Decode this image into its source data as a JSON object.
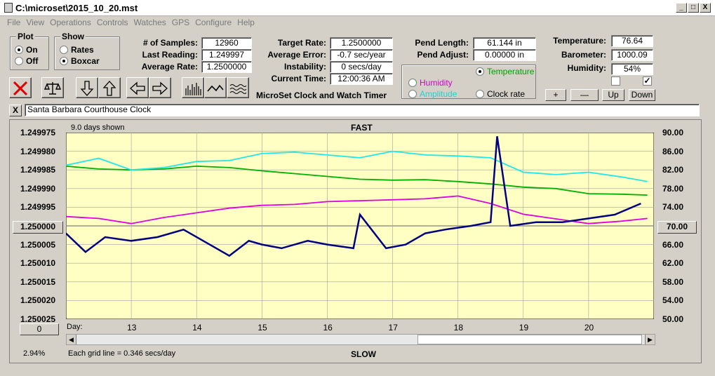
{
  "window": {
    "title": "C:\\microset\\2015_10_20.mst",
    "min": "_",
    "max": "□",
    "close": "X"
  },
  "menu": [
    "File",
    "View",
    "Operations",
    "Controls",
    "Watches",
    "GPS",
    "Configure",
    "Help"
  ],
  "plot_group": {
    "title": "Plot",
    "on": "On",
    "off": "Off",
    "selected": "On"
  },
  "show_group": {
    "title": "Show",
    "rates": "Rates",
    "boxcar": "Boxcar",
    "selected": "Boxcar"
  },
  "stats": {
    "samples_label": "# of Samples:",
    "samples": "12960",
    "last_label": "Last Reading:",
    "last": "1.249997",
    "avg_rate_label": "Average Rate:",
    "avg_rate": "1.2500000"
  },
  "rates": {
    "target_label": "Target Rate:",
    "target": "1.2500000",
    "avg_err_label": "Average Error:",
    "avg_err": "-0.7 sec/year",
    "instab_label": "Instability:",
    "instab": "0 secs/day",
    "time_label": "Current Time:",
    "time": "12:00:36 AM"
  },
  "app_name": "MicroSet Clock and Watch Timer",
  "pend": {
    "length_label": "Pend Length:",
    "length": "61.144 in",
    "adjust_label": "Pend Adjust:",
    "adjust": "0.00000 in"
  },
  "sensors": {
    "temp_label": "Temperature:",
    "temp": "76.64",
    "baro_label": "Barometer:",
    "baro": "1000.09",
    "hum_label": "Humidity:",
    "hum": "54%"
  },
  "right_axis_options": {
    "temperature": "Temperature",
    "humidity": "Humidity",
    "amplitude": "Amplitude",
    "clock_rate": "Clock rate",
    "selected": "Temperature"
  },
  "scale_buttons": {
    "plus": "+",
    "minus": "—",
    "up": "Up",
    "down": "Down"
  },
  "checkboxes": {
    "left": false,
    "right": true
  },
  "clock_name": "Santa Barbara Courthouse Clock",
  "clear_label": "X",
  "plot": {
    "days_shown": "9.0 days shown",
    "fast": "FAST",
    "slow": "SLOW",
    "center_left": "1.250000",
    "center_right": "70.00",
    "bottom_btn": "0",
    "percent": "2.94%",
    "grid_note": "Each grid line = 0.346 secs/day",
    "day_label": "Day:"
  },
  "colors": {
    "rate": "#000080",
    "temperature": "#00b000",
    "humidity": "#e000e0",
    "amplitude": "#20e8e8",
    "plot_bg": "#ffffc4"
  },
  "chart_data": {
    "type": "line",
    "x_label": "Day:",
    "x_ticks": [
      "13",
      "14",
      "15",
      "16",
      "17",
      "18",
      "19",
      "20"
    ],
    "x_range": [
      12.0,
      21.0
    ],
    "y_left_ticks": [
      "1.249975",
      "1.249980",
      "1.249985",
      "1.249990",
      "1.249995",
      "1.250000",
      "1.250005",
      "1.250010",
      "1.250015",
      "1.250020",
      "1.250025"
    ],
    "y_left_range": [
      1.249975,
      1.250025
    ],
    "y_left_inverted": true,
    "y_right_ticks": [
      "90.00",
      "86.00",
      "82.00",
      "78.00",
      "74.00",
      "70.00",
      "66.00",
      "62.00",
      "58.00",
      "54.00",
      "50.00"
    ],
    "y_right_range": [
      50,
      90
    ],
    "series": [
      {
        "name": "Temperature",
        "axis": "right",
        "color": "#00b000",
        "x": [
          12.0,
          12.5,
          13.0,
          13.5,
          14.0,
          14.5,
          15.0,
          15.5,
          16.0,
          16.5,
          17.0,
          17.5,
          18.0,
          18.5,
          19.0,
          19.5,
          20.0,
          20.5,
          20.9
        ],
        "y": [
          82.8,
          82.2,
          82.0,
          82.2,
          82.8,
          82.5,
          81.8,
          81.2,
          80.6,
          80.0,
          79.8,
          79.9,
          79.5,
          79.0,
          78.3,
          78.0,
          76.9,
          76.8,
          76.6
        ]
      },
      {
        "name": "Humidity",
        "axis": "right",
        "color": "#e000e0",
        "x": [
          12.0,
          12.5,
          13.0,
          13.5,
          14.0,
          14.5,
          15.0,
          15.5,
          16.0,
          16.5,
          17.0,
          17.5,
          18.0,
          18.5,
          19.0,
          19.5,
          20.0,
          20.5,
          20.9
        ],
        "y": [
          72.0,
          71.6,
          70.5,
          71.8,
          72.8,
          73.8,
          74.4,
          74.6,
          75.2,
          75.4,
          75.6,
          75.8,
          76.4,
          74.8,
          72.5,
          71.5,
          70.5,
          71.0,
          71.6
        ]
      },
      {
        "name": "Amplitude",
        "axis": "right",
        "color": "#20e8e8",
        "x": [
          12.0,
          12.5,
          13.0,
          13.5,
          14.0,
          14.5,
          15.0,
          15.5,
          16.0,
          16.5,
          17.0,
          17.5,
          18.0,
          18.5,
          19.0,
          19.5,
          20.0,
          20.5,
          20.9
        ],
        "y": [
          83.0,
          84.5,
          82.0,
          82.5,
          83.8,
          84.0,
          85.5,
          85.8,
          85.2,
          84.6,
          86.0,
          85.2,
          85.0,
          84.6,
          81.5,
          81.0,
          81.5,
          80.5,
          79.5
        ]
      },
      {
        "name": "Clock rate",
        "axis": "left",
        "color": "#000080",
        "x": [
          12.0,
          12.3,
          12.6,
          13.0,
          13.4,
          13.8,
          14.2,
          14.5,
          14.8,
          15.0,
          15.3,
          15.7,
          16.0,
          16.4,
          16.5,
          16.9,
          17.2,
          17.5,
          17.8,
          18.2,
          18.5,
          18.6,
          18.8,
          19.2,
          19.6,
          20.0,
          20.4,
          20.8
        ],
        "y": [
          1.250002,
          1.250007,
          1.250003,
          1.250004,
          1.250003,
          1.250001,
          1.250005,
          1.250008,
          1.250004,
          1.250005,
          1.250006,
          1.250004,
          1.250005,
          1.250006,
          1.249997,
          1.250006,
          1.250005,
          1.250002,
          1.250001,
          1.25,
          1.249999,
          1.249976,
          1.25,
          1.249999,
          1.249999,
          1.249998,
          1.249997,
          1.249994
        ]
      }
    ]
  }
}
